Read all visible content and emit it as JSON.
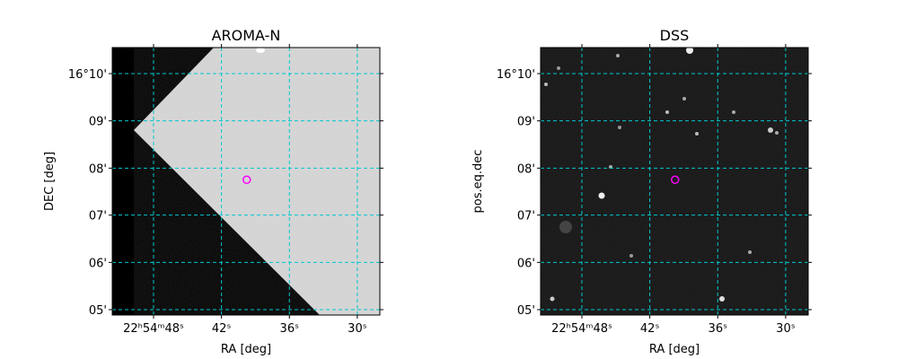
{
  "chart_data": [
    {
      "type": "image",
      "title": "AROMA-N",
      "xlabel": "RA [deg]",
      "ylabel": "DEC [deg]",
      "xlim": [
        343.7152,
        343.6167
      ],
      "ylim": [
        16.0814,
        16.1759
      ],
      "xticks": [
        {
          "value": 343.7,
          "label": "22ʰ54ᵐ48ˢ"
        },
        {
          "value": 343.675,
          "label": "42ˢ"
        },
        {
          "value": 343.65,
          "label": "36ˢ"
        },
        {
          "value": 343.625,
          "label": "30ˢ"
        }
      ],
      "yticks": [
        {
          "value": 16.1667,
          "label": "16°10'"
        },
        {
          "value": 16.15,
          "label": "09'"
        },
        {
          "value": 16.1333,
          "label": "08'"
        },
        {
          "value": 16.1167,
          "label": "07'"
        },
        {
          "value": 16.1,
          "label": "06'"
        },
        {
          "value": 16.0833,
          "label": "05'"
        }
      ],
      "grid": true,
      "grid_color": "#00c8d0",
      "marker": {
        "x": 343.6657,
        "y": 16.1292,
        "color": "#ff00ff"
      }
    },
    {
      "type": "image",
      "title": "DSS",
      "xlabel": "RA [deg]",
      "ylabel": "pos.eq.dec",
      "xlim": [
        343.7152,
        343.6167
      ],
      "ylim": [
        16.0814,
        16.1759
      ],
      "xticks": [
        {
          "value": 343.7,
          "label": "22ʰ54ᵐ48ˢ"
        },
        {
          "value": 343.675,
          "label": "42ˢ"
        },
        {
          "value": 343.65,
          "label": "36ˢ"
        },
        {
          "value": 343.625,
          "label": "30ˢ"
        }
      ],
      "yticks": [
        {
          "value": 16.1667,
          "label": "16°10'"
        },
        {
          "value": 16.15,
          "label": "09'"
        },
        {
          "value": 16.1333,
          "label": "08'"
        },
        {
          "value": 16.1167,
          "label": "07'"
        },
        {
          "value": 16.1,
          "label": "06'"
        },
        {
          "value": 16.0833,
          "label": "05'"
        }
      ],
      "grid": true,
      "grid_color": "#00c8d0",
      "marker": {
        "x": 343.6657,
        "y": 16.1292,
        "color": "#ff00ff"
      }
    }
  ]
}
